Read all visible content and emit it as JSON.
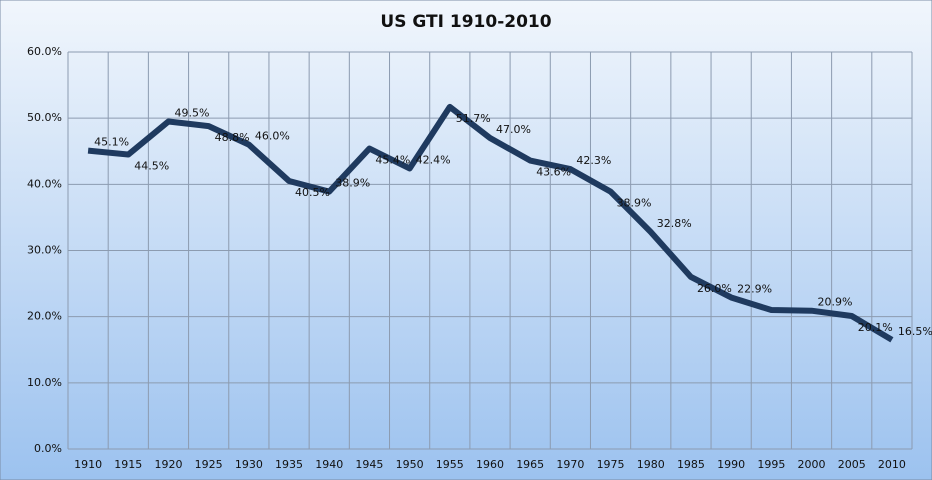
{
  "chart_data": {
    "type": "line",
    "title": "US GTI 1910-2010",
    "categories": [
      "1910",
      "1915",
      "1920",
      "1925",
      "1930",
      "1935",
      "1940",
      "1945",
      "1950",
      "1955",
      "1960",
      "1965",
      "1970",
      "1975",
      "1980",
      "1985",
      "1990",
      "1995",
      "2000",
      "2005",
      "2010"
    ],
    "values": [
      45.1,
      44.5,
      49.5,
      48.8,
      46.0,
      40.5,
      38.9,
      45.4,
      42.4,
      51.7,
      47.0,
      43.6,
      42.3,
      38.9,
      32.8,
      26.0,
      22.9,
      21.0,
      20.9,
      20.1,
      16.5
    ],
    "value_labels": [
      "45.1%",
      "44.5%",
      "49.5%",
      "48.8%",
      "46.0%",
      "40.5%",
      "38.9%",
      "45.4%",
      "42.4%",
      "51.7%",
      "47.0%",
      "43.6%",
      "42.3%",
      "38.9%",
      "32.8%",
      "26.0%",
      "22.9%",
      null,
      "20.9%",
      "20.1%",
      "16.5%"
    ],
    "color": "#1f3a5f",
    "ylim": [
      0,
      60
    ],
    "yticks": [
      {
        "value": 0,
        "label": "0.0%"
      },
      {
        "value": 10,
        "label": "10.0%"
      },
      {
        "value": 20,
        "label": "20.0%"
      },
      {
        "value": 30,
        "label": "30.0%"
      },
      {
        "value": 40,
        "label": "40.0%"
      },
      {
        "value": 50,
        "label": "50.0%"
      },
      {
        "value": 60,
        "label": "60.0%"
      }
    ],
    "grid": true
  }
}
